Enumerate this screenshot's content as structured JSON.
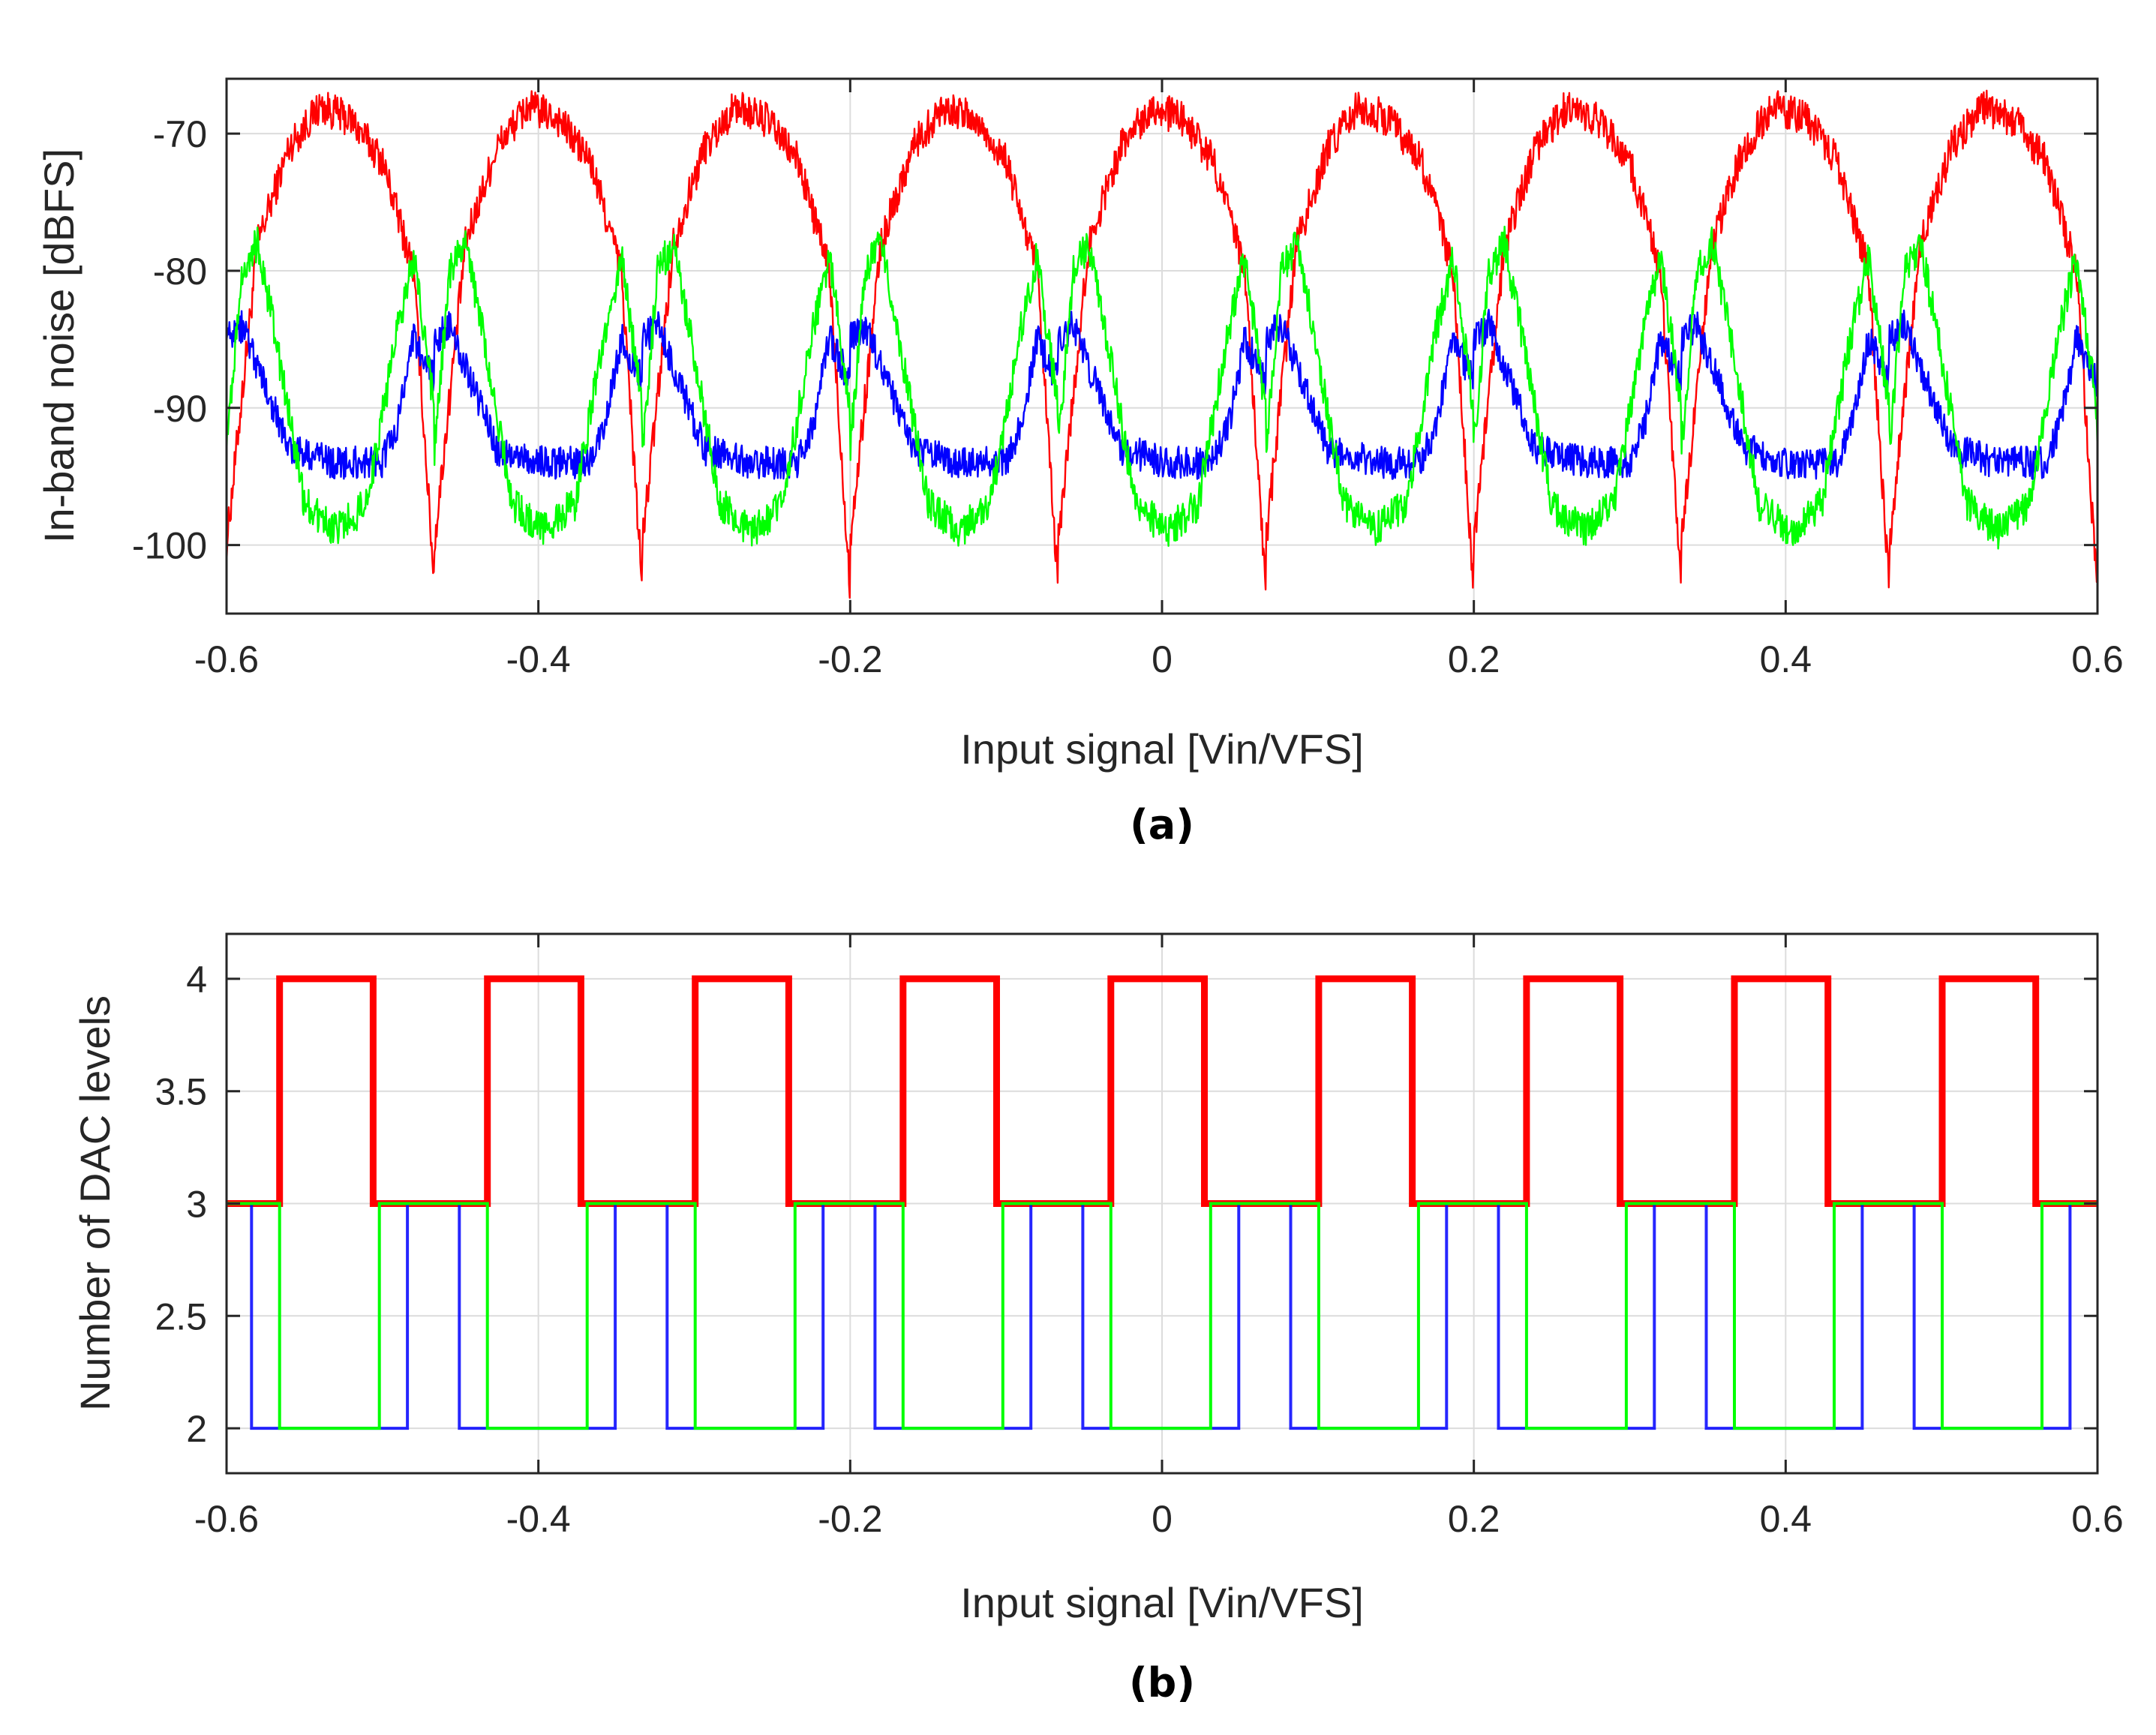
{
  "chart_data": [
    {
      "panel_label": "(a)",
      "type": "line",
      "xlabel": "Input signal [Vin/VFS]",
      "ylabel": "In-band noise [dBFS]",
      "xlim": [
        -0.6,
        0.6
      ],
      "ylim": [
        -105,
        -66
      ],
      "xticks": [
        -0.6,
        -0.4,
        -0.2,
        0,
        0.2,
        0.4,
        0.6
      ],
      "xtick_labels": [
        "-0.6",
        "-0.4",
        "-0.2",
        "0",
        "0.2",
        "0.4",
        "0.6"
      ],
      "yticks": [
        -100,
        -90,
        -80,
        -70
      ],
      "ytick_labels": [
        "-100",
        "-90",
        "-80",
        "-70"
      ],
      "grid": true,
      "period": 0.1333,
      "series": [
        {
          "color": "#ff0000",
          "shape_note": "periodic arch; peak near -68 at centre of each period, dips toward -100 to -105 at the edges",
          "x": [
            -0.6,
            -0.58,
            -0.56,
            -0.54,
            -0.52,
            -0.5,
            -0.48,
            -0.4667
          ],
          "y": [
            -100,
            -78,
            -71,
            -68,
            -69,
            -72,
            -80,
            -103
          ]
        },
        {
          "color": "#0000ff",
          "shape_note": "periodic; flat plateau near -94 in centre, rises to -83 near period edges, dips near edges",
          "x": [
            -0.6,
            -0.59,
            -0.58,
            -0.56,
            -0.53,
            -0.5,
            -0.49,
            -0.48,
            -0.4667
          ],
          "y": [
            -85,
            -84,
            -87,
            -93,
            -94,
            -94,
            -91,
            -85,
            -88
          ]
        },
        {
          "color": "#00ff00",
          "shape_note": "periodic; peaks near -78 just inside each period edge, trough near -99 in centre",
          "x": [
            -0.6,
            -0.59,
            -0.58,
            -0.57,
            -0.55,
            -0.53,
            -0.51,
            -0.49,
            -0.48,
            -0.4667
          ],
          "y": [
            -93,
            -80,
            -78,
            -84,
            -97,
            -99,
            -97,
            -84,
            -79,
            -90
          ]
        }
      ]
    },
    {
      "panel_label": "(b)",
      "type": "line",
      "xlabel": "Input signal [Vin/VFS]",
      "ylabel": "Number of DAC levels",
      "xlim": [
        -0.6,
        0.6
      ],
      "ylim": [
        1.8,
        4.2
      ],
      "xticks": [
        -0.6,
        -0.4,
        -0.2,
        0,
        0.2,
        0.4,
        0.6
      ],
      "xtick_labels": [
        "-0.6",
        "-0.4",
        "-0.2",
        "0",
        "0.2",
        "0.4",
        "0.6"
      ],
      "yticks": [
        2,
        2.5,
        3,
        3.5,
        4
      ],
      "ytick_labels": [
        "2",
        "2.5",
        "3",
        "3.5",
        "4"
      ],
      "grid": true,
      "period": 0.1333,
      "series": [
        {
          "color": "#ff0000",
          "shape_note": "step 3 -> 4 -> 3 each period",
          "high_interval": [
            -0.566,
            -0.506
          ],
          "low_value": 3,
          "high_value": 4
        },
        {
          "color": "#0000ff",
          "shape_note": "step 3 -> 2 -> 3 each period",
          "low_interval": [
            -0.584,
            -0.484
          ],
          "low_value": 2,
          "high_value": 3
        },
        {
          "color": "#00ff00",
          "shape_note": "step 3 -> 2 -> 3 each period",
          "low_interval": [
            -0.566,
            -0.502
          ],
          "low_value": 2,
          "high_value": 3
        }
      ]
    }
  ]
}
